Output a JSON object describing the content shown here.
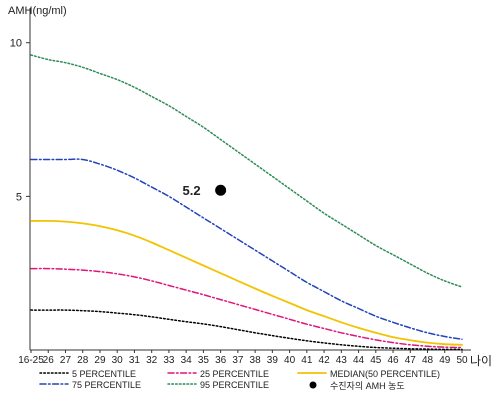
{
  "chart_data": {
    "type": "line",
    "title": "",
    "ylabel": "AMH(ng/ml)",
    "xlabel": "나이",
    "categories": [
      "16-25",
      "26",
      "27",
      "28",
      "29",
      "30",
      "31",
      "32",
      "33",
      "34",
      "35",
      "36",
      "37",
      "38",
      "39",
      "40",
      "41",
      "42",
      "43",
      "44",
      "45",
      "46",
      "47",
      "48",
      "49",
      "50"
    ],
    "ylim": [
      0,
      11
    ],
    "yticks": [
      5,
      10
    ],
    "series": [
      {
        "name": "5 PERCENTILE",
        "color": "#000000",
        "dash": "dot",
        "values": [
          1.3,
          1.3,
          1.3,
          1.28,
          1.25,
          1.2,
          1.15,
          1.08,
          1.0,
          0.92,
          0.85,
          0.76,
          0.66,
          0.56,
          0.47,
          0.38,
          0.3,
          0.23,
          0.17,
          0.12,
          0.08,
          0.06,
          0.04,
          0.03,
          0.02,
          0.02
        ]
      },
      {
        "name": "25 PERCENTILE",
        "color": "#e0147a",
        "dash": "dashdot",
        "values": [
          2.65,
          2.65,
          2.63,
          2.6,
          2.55,
          2.48,
          2.38,
          2.25,
          2.1,
          1.95,
          1.8,
          1.64,
          1.48,
          1.32,
          1.16,
          1.0,
          0.84,
          0.7,
          0.56,
          0.44,
          0.33,
          0.24,
          0.17,
          0.12,
          0.09,
          0.08
        ]
      },
      {
        "name": "MEDIAN(50 PERCENTILE)",
        "color": "#f2c300",
        "dash": "solid",
        "values": [
          4.2,
          4.2,
          4.18,
          4.12,
          4.03,
          3.9,
          3.72,
          3.5,
          3.25,
          3.0,
          2.75,
          2.5,
          2.25,
          2.0,
          1.76,
          1.53,
          1.3,
          1.1,
          0.9,
          0.72,
          0.56,
          0.42,
          0.32,
          0.24,
          0.19,
          0.17
        ]
      },
      {
        "name": "75 PERCENTILE",
        "color": "#2244bb",
        "dash": "dashdot",
        "values": [
          6.2,
          6.2,
          6.2,
          6.2,
          6.05,
          5.85,
          5.6,
          5.3,
          5.0,
          4.65,
          4.3,
          3.95,
          3.6,
          3.25,
          2.9,
          2.55,
          2.2,
          1.9,
          1.6,
          1.35,
          1.1,
          0.9,
          0.72,
          0.56,
          0.44,
          0.35
        ]
      },
      {
        "name": "95 PERCENTILE",
        "color": "#2e8b57",
        "dash": "dot",
        "values": [
          9.6,
          9.45,
          9.35,
          9.2,
          9.0,
          8.8,
          8.55,
          8.25,
          7.95,
          7.6,
          7.25,
          6.85,
          6.45,
          6.05,
          5.65,
          5.25,
          4.85,
          4.45,
          4.1,
          3.75,
          3.4,
          3.1,
          2.8,
          2.5,
          2.25,
          2.05
        ]
      }
    ],
    "annotation": {
      "label": "수진자의 AMH 농도",
      "category": "36",
      "value": 5.2,
      "text": "5.2",
      "color": "#000000"
    },
    "legend": {
      "placement": "bottom"
    }
  }
}
